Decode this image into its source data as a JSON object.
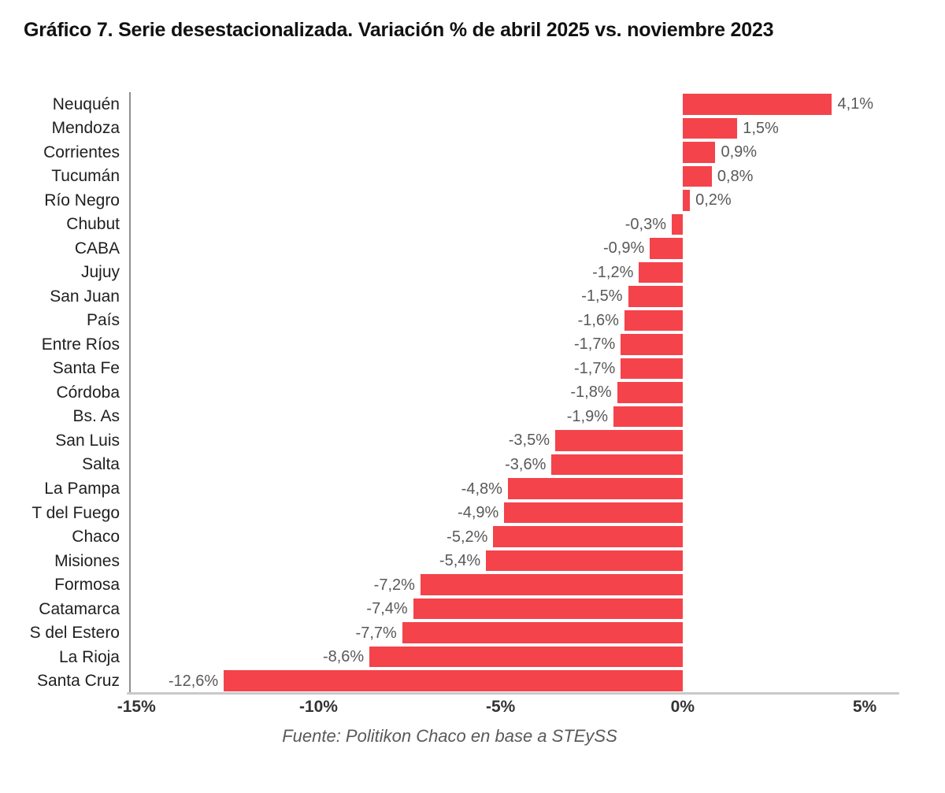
{
  "title": "Gráfico 7. Serie desestacionalizada. Variación % de abril 2025 vs. noviembre 2023",
  "source": "Fuente: Politikon Chaco en base a STEySS",
  "colors": {
    "bar": "#f4434b",
    "value_label": "#595959",
    "category_label": "#1f1f1f",
    "tick_label": "#333333",
    "y_axis_line": "#8f8f8f",
    "x_axis_line": "#c9c9c9",
    "background": "#ffffff",
    "title": "#111111"
  },
  "chart_data": {
    "type": "bar",
    "orientation": "horizontal",
    "title": "Gráfico 7. Serie desestacionalizada. Variación % de abril 2025 vs. noviembre 2023",
    "xlabel": "",
    "ylabel": "",
    "grid": false,
    "legend": false,
    "xlim": [
      -15.2,
      5.95
    ],
    "categories": [
      "Neuquén",
      "Mendoza",
      "Corrientes",
      "Tucumán",
      "Río Negro",
      "Chubut",
      "CABA",
      "Jujuy",
      "San Juan",
      "País",
      "Entre Ríos",
      "Santa Fe",
      "Córdoba",
      "Bs. As",
      "San Luis",
      "Salta",
      "La Pampa",
      "T del Fuego",
      "Chaco",
      "Misiones",
      "Formosa",
      "Catamarca",
      "S del Estero",
      "La Rioja",
      "Santa Cruz"
    ],
    "values": [
      4.1,
      1.5,
      0.9,
      0.8,
      0.2,
      -0.3,
      -0.9,
      -1.2,
      -1.5,
      -1.6,
      -1.7,
      -1.7,
      -1.8,
      -1.9,
      -3.5,
      -3.6,
      -4.8,
      -4.9,
      -5.2,
      -5.4,
      -7.2,
      -7.4,
      -7.7,
      -8.6,
      -12.6
    ],
    "value_labels": [
      "4,1%",
      "1,5%",
      "0,9%",
      "0,8%",
      "0,2%",
      "-0,3%",
      "-0,9%",
      "-1,2%",
      "-1,5%",
      "-1,6%",
      "-1,7%",
      "-1,7%",
      "-1,8%",
      "-1,9%",
      "-3,5%",
      "-3,6%",
      "-4,8%",
      "-4,9%",
      "-5,2%",
      "-5,4%",
      "-7,2%",
      "-7,4%",
      "-7,7%",
      "-8,6%",
      "-12,6%"
    ],
    "x_ticks": [
      {
        "value": -15,
        "label": "-15%"
      },
      {
        "value": -10,
        "label": "-10%"
      },
      {
        "value": -5,
        "label": "-5%"
      },
      {
        "value": 0,
        "label": "0%"
      },
      {
        "value": 5,
        "label": "5%"
      }
    ]
  }
}
